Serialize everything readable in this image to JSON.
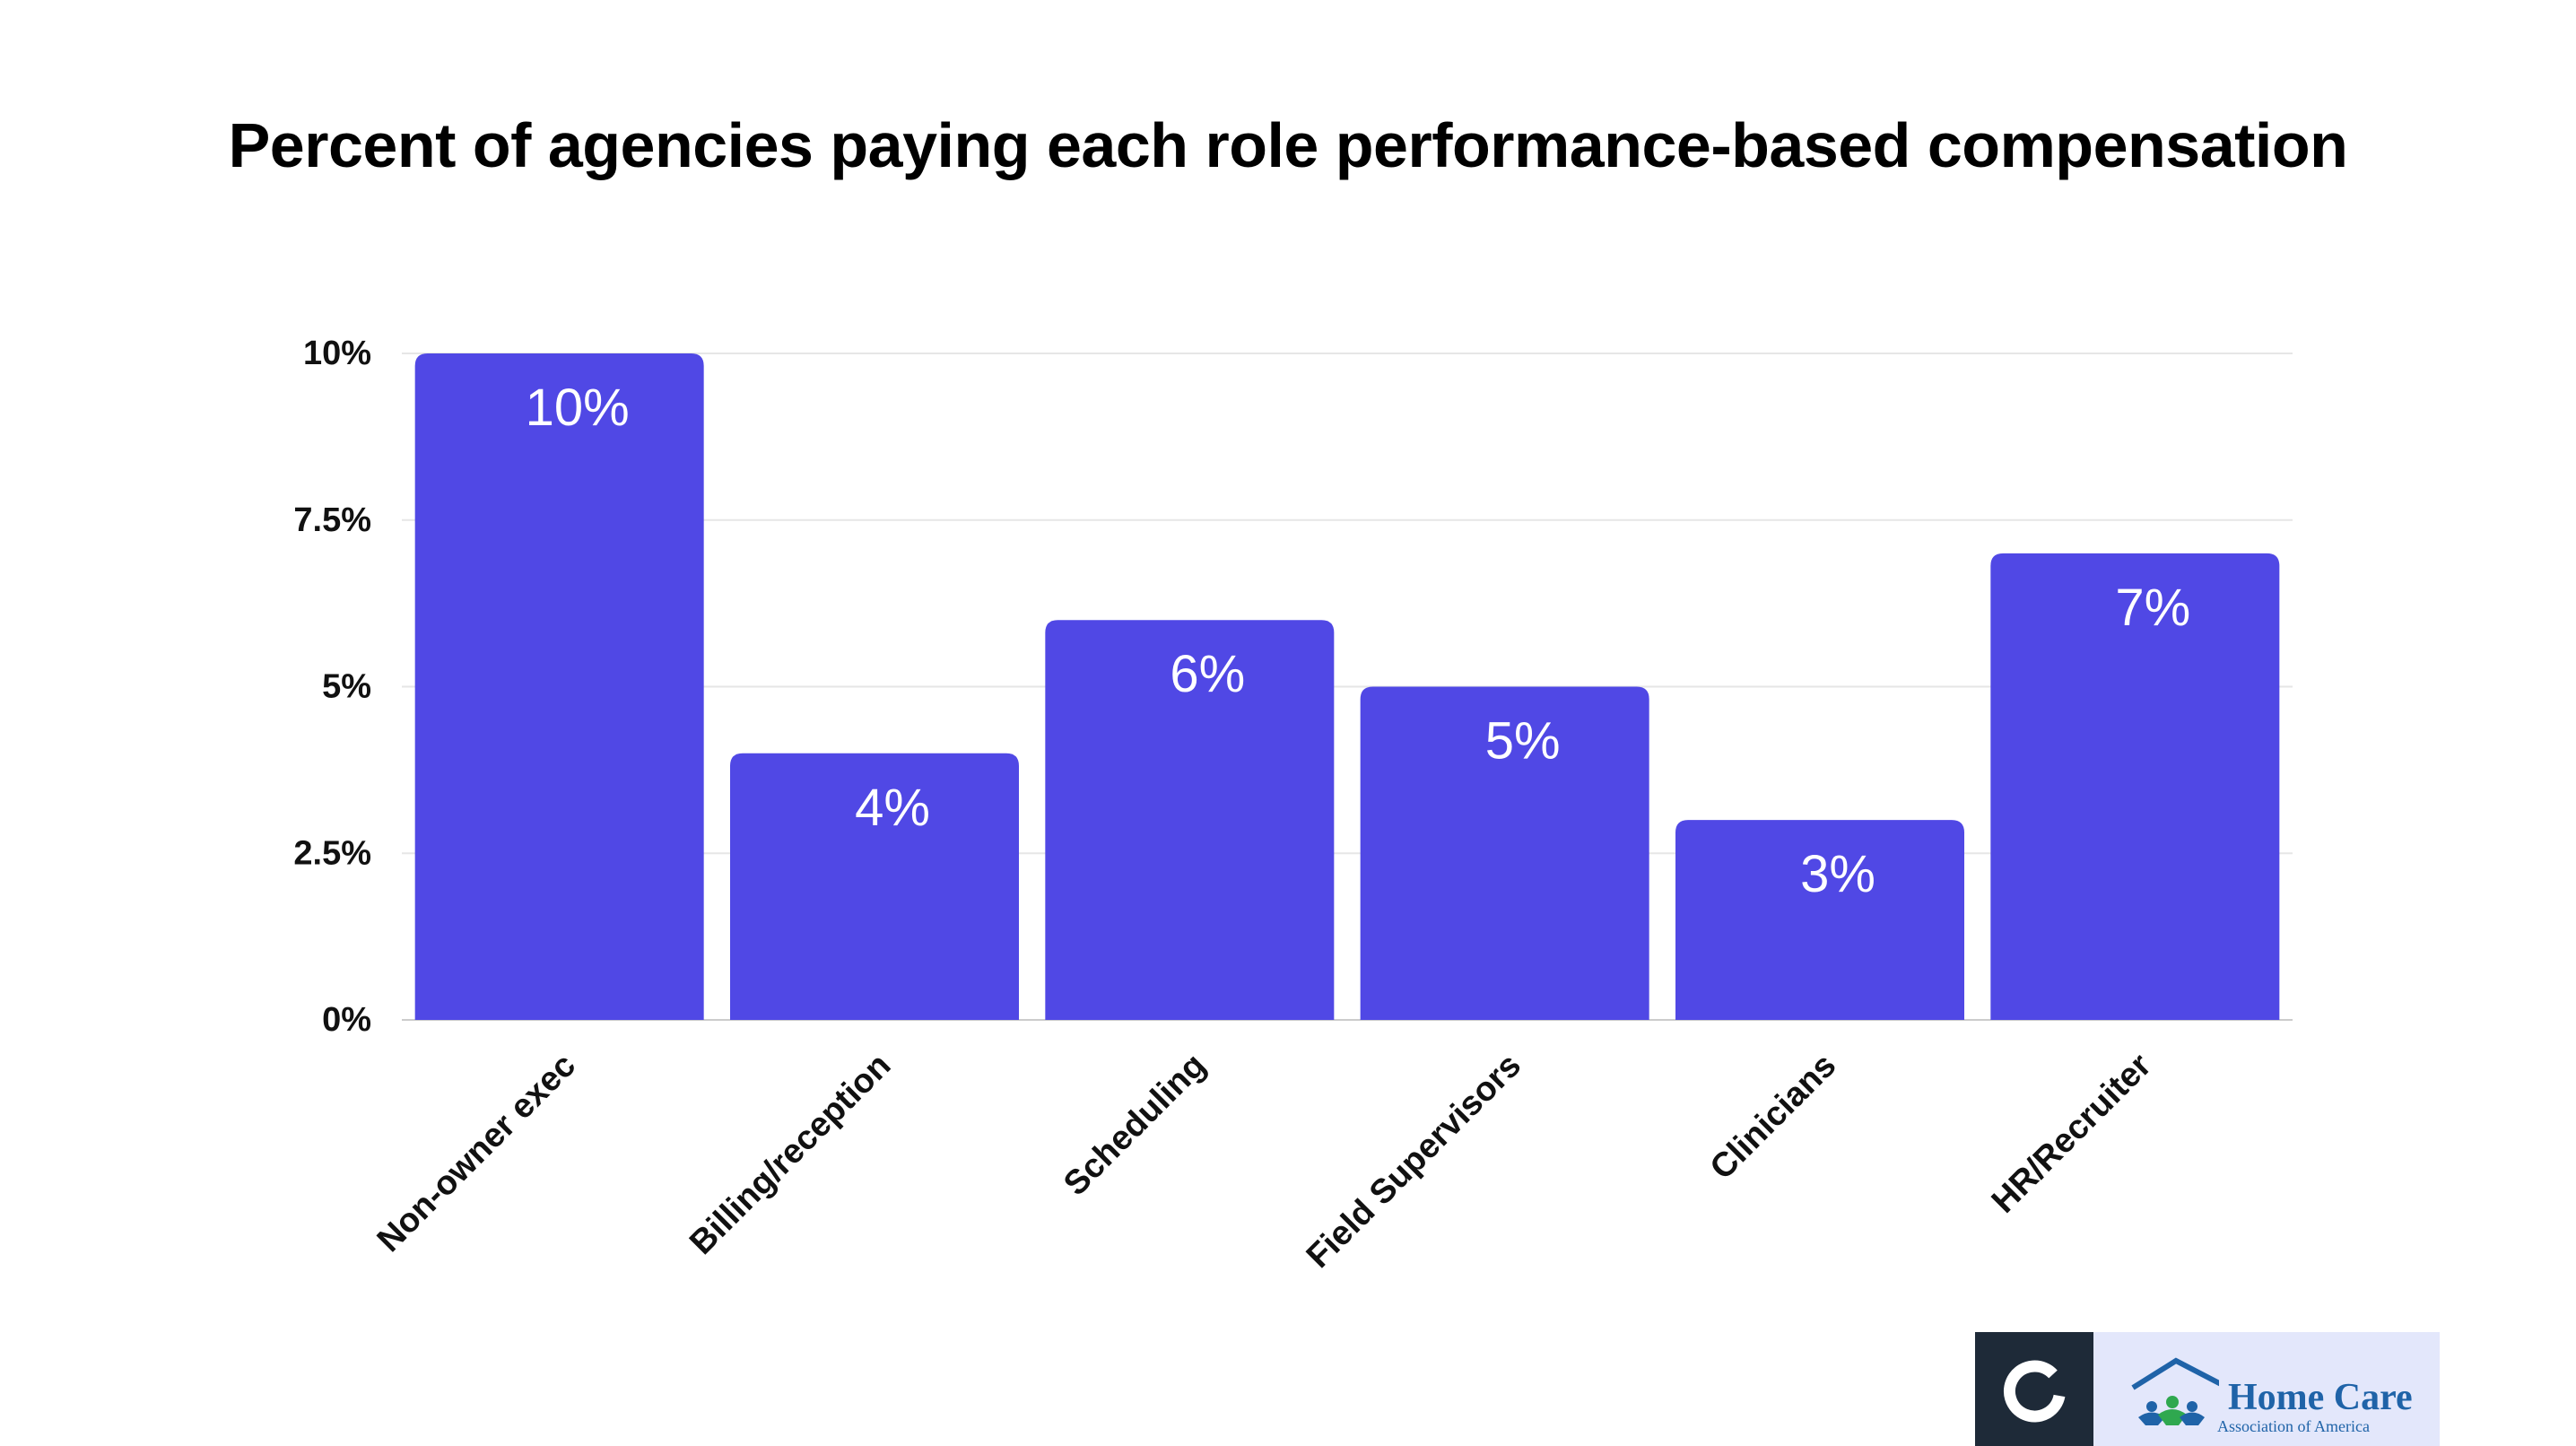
{
  "chart_data": {
    "type": "bar",
    "title": "Percent of agencies paying each role performance-based compensation",
    "categories": [
      "Non-owner exec",
      "Billing/reception",
      "Scheduling",
      "Field Supervisors",
      "Clinicians",
      "HR/Recruiter"
    ],
    "values": [
      10,
      4,
      6,
      5,
      3,
      7
    ],
    "data_labels": [
      "10%",
      "4%",
      "6%",
      "5%",
      "3%",
      "7%"
    ],
    "ylim": [
      0,
      10
    ],
    "yticks": [
      0,
      2.5,
      5,
      7.5,
      10
    ],
    "ytick_labels": [
      "0%",
      "2.5%",
      "5%",
      "7.5%",
      "10%"
    ],
    "xlabel": "",
    "ylabel": "",
    "grid": true,
    "bar_color": "#5048e5",
    "label_color": "#ffffff"
  },
  "footer": {
    "logo_left_icon": "ring-logo-icon",
    "logo_right_icon": "house-people-logo-icon",
    "logo_right_name": "Home Care",
    "logo_right_sub": "Association of America"
  }
}
